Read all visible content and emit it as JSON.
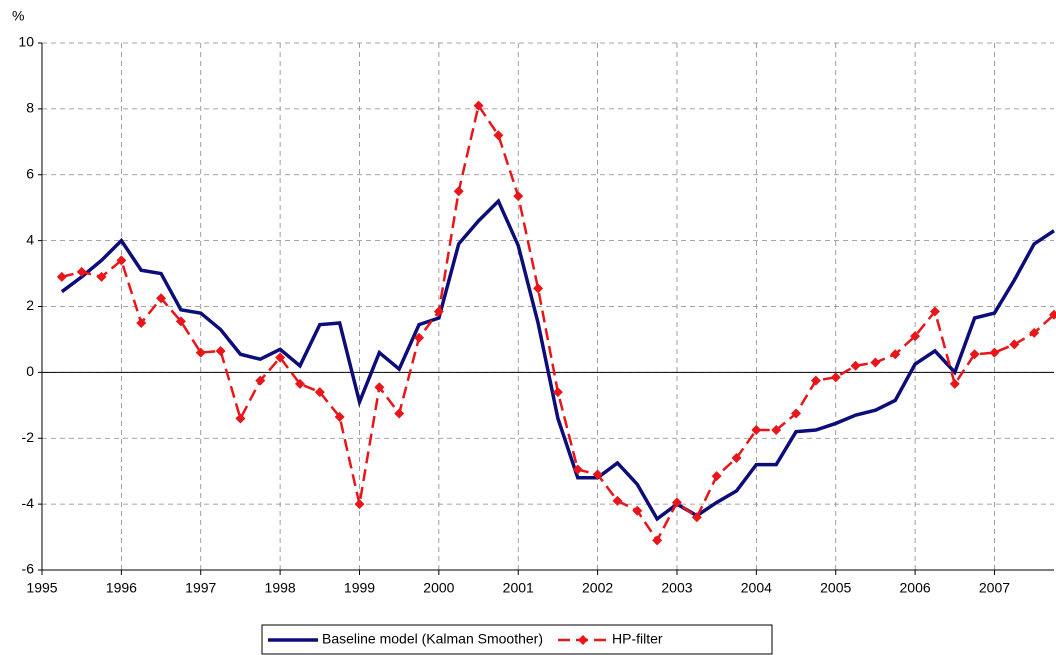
{
  "chart_data": {
    "type": "line",
    "y_unit_label": "%",
    "x": [
      1995.25,
      1995.5,
      1995.75,
      1996,
      1996.25,
      1996.5,
      1996.75,
      1997,
      1997.25,
      1997.5,
      1997.75,
      1998,
      1998.25,
      1998.5,
      1998.75,
      1999,
      1999.25,
      1999.5,
      1999.75,
      2000,
      2000.25,
      2000.5,
      2000.75,
      2001,
      2001.25,
      2001.5,
      2001.75,
      2002,
      2002.25,
      2002.5,
      2002.75,
      2003,
      2003.25,
      2003.5,
      2003.75,
      2004,
      2004.25,
      2004.5,
      2004.75,
      2005,
      2005.25,
      2005.5,
      2005.75,
      2006,
      2006.25,
      2006.5,
      2006.75,
      2007,
      2007.25,
      2007.5,
      2007.75
    ],
    "series": [
      {
        "name": "Baseline model (Kalman Smoother)",
        "color": "#0d0d7a",
        "values": [
          2.45,
          2.9,
          3.4,
          4.0,
          3.1,
          3.0,
          1.9,
          1.8,
          1.3,
          0.55,
          0.4,
          0.7,
          0.2,
          1.45,
          1.5,
          -0.9,
          0.6,
          0.1,
          1.45,
          1.65,
          3.9,
          4.6,
          5.2,
          3.85,
          1.5,
          -1.4,
          -3.2,
          -3.2,
          -2.75,
          -3.4,
          -4.45,
          -4.0,
          -4.35,
          -3.95,
          -3.6,
          -2.8,
          -2.8,
          -1.8,
          -1.75,
          -1.55,
          -1.3,
          -1.15,
          -0.85,
          0.25,
          0.65,
          0.0,
          1.65,
          1.8,
          2.8,
          3.9,
          4.3
        ]
      },
      {
        "name": "HP-filter",
        "color": "#e8161a",
        "values": [
          2.9,
          3.05,
          2.9,
          3.4,
          1.5,
          2.25,
          1.55,
          0.6,
          0.65,
          -1.4,
          -0.25,
          0.45,
          -0.35,
          -0.6,
          -1.35,
          -4.0,
          -0.45,
          -1.25,
          1.05,
          1.85,
          5.5,
          8.1,
          7.2,
          5.35,
          2.55,
          -0.6,
          -2.95,
          -3.1,
          -3.9,
          -4.2,
          -5.1,
          -3.95,
          -4.4,
          -3.15,
          -2.6,
          -1.75,
          -1.75,
          -1.25,
          -0.25,
          -0.15,
          0.2,
          0.3,
          0.55,
          1.1,
          1.85,
          -0.35,
          0.55,
          0.6,
          0.85,
          1.2,
          1.75
        ]
      }
    ],
    "xlim": [
      1995,
      2007.75
    ],
    "xticks": [
      1995,
      1996,
      1997,
      1998,
      1999,
      2000,
      2001,
      2002,
      2003,
      2004,
      2005,
      2006,
      2007
    ],
    "ylim": [
      -6,
      10
    ],
    "yticks": [
      -6,
      -4,
      -2,
      0,
      2,
      4,
      6,
      8,
      10
    ],
    "grid": true
  }
}
